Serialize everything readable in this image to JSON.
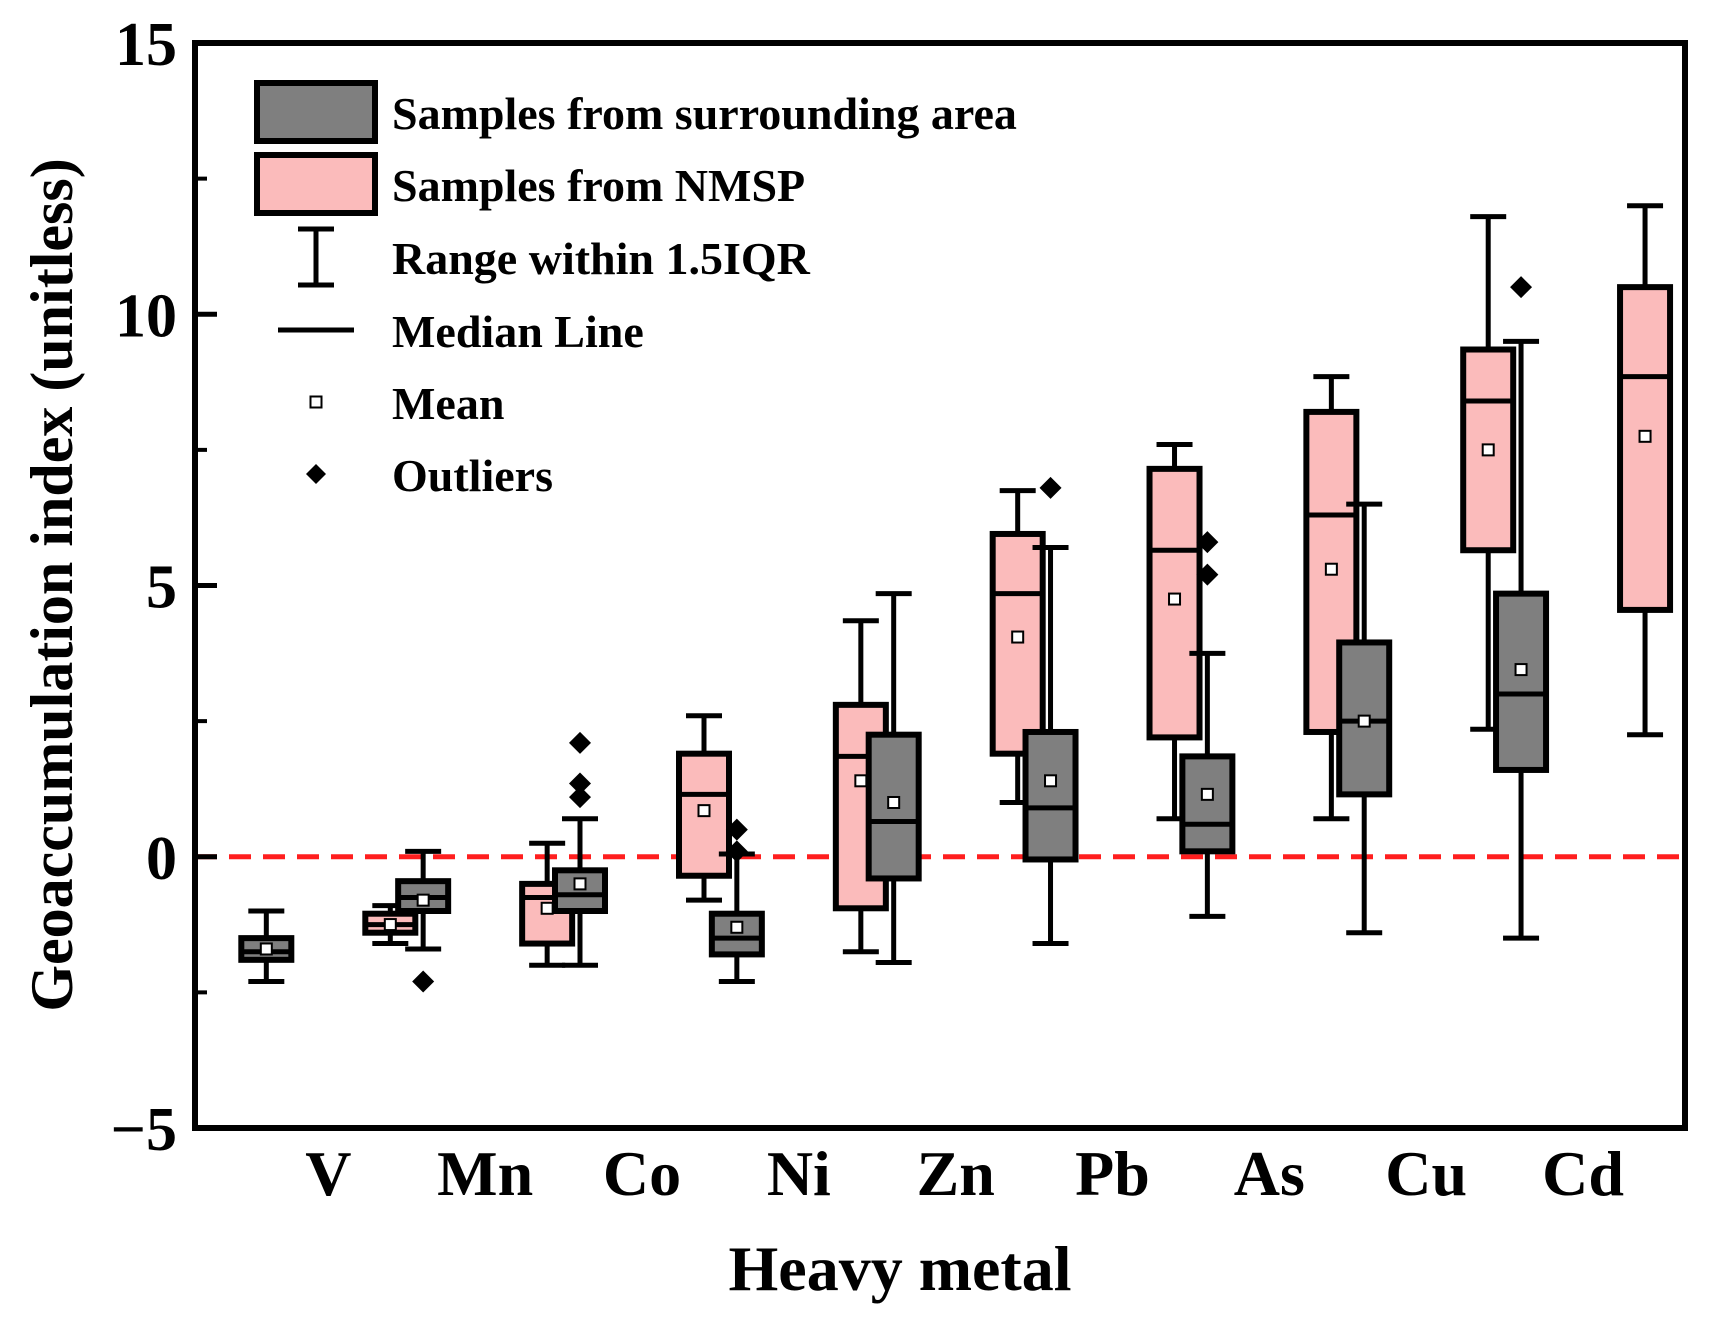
{
  "chart_data": {
    "type": "boxplot",
    "xlabel": "Heavy metal",
    "ylabel": "Geoaccumulation index (unitless)",
    "ylim": [
      -5,
      15
    ],
    "yticks": [
      "−5",
      "0",
      "5",
      "10",
      "15"
    ],
    "reference_line": 0,
    "colors": {
      "surrounding": "#7f7f7f",
      "nmsp": "#fbbbbb",
      "reference": "#ff1e1e",
      "axis": "#000000"
    },
    "categories": [
      "V",
      "Mn",
      "Co",
      "Ni",
      "Zn",
      "Pb",
      "As",
      "Cu",
      "Cd"
    ],
    "series": [
      {
        "name": "Samples from surrounding area",
        "key": "surrounding",
        "boxes": [
          {
            "whisker_low": -2.3,
            "q1": -1.9,
            "median": -1.75,
            "q3": -1.5,
            "whisker_high": -1.0,
            "mean": -1.7,
            "outliers": []
          },
          {
            "whisker_low": -1.7,
            "q1": -1.0,
            "median": -0.75,
            "q3": -0.45,
            "whisker_high": 0.1,
            "mean": -0.8,
            "outliers": [
              -2.3
            ]
          },
          {
            "whisker_low": -2.0,
            "q1": -1.0,
            "median": -0.7,
            "q3": -0.25,
            "whisker_high": 0.7,
            "mean": -0.5,
            "outliers": [
              1.1,
              1.35,
              2.1
            ]
          },
          {
            "whisker_low": -2.3,
            "q1": -1.8,
            "median": -1.5,
            "q3": -1.05,
            "whisker_high": 0.05,
            "mean": -1.3,
            "outliers": [
              0.1,
              0.5
            ]
          },
          {
            "whisker_low": -1.95,
            "q1": -0.4,
            "median": 0.65,
            "q3": 2.25,
            "whisker_high": 4.85,
            "mean": 1.0,
            "outliers": []
          },
          {
            "whisker_low": -1.6,
            "q1": -0.05,
            "median": 0.9,
            "q3": 2.3,
            "whisker_high": 5.7,
            "mean": 1.4,
            "outliers": [
              6.8
            ]
          },
          {
            "whisker_low": -1.1,
            "q1": 0.1,
            "median": 0.6,
            "q3": 1.85,
            "whisker_high": 3.75,
            "mean": 1.15,
            "outliers": [
              5.2,
              5.8
            ]
          },
          {
            "whisker_low": -1.4,
            "q1": 1.15,
            "median": 2.5,
            "q3": 3.95,
            "whisker_high": 6.5,
            "mean": 2.5,
            "outliers": []
          },
          {
            "whisker_low": -1.5,
            "q1": 1.6,
            "median": 3.0,
            "q3": 4.85,
            "whisker_high": 9.5,
            "mean": 3.45,
            "outliers": [
              10.5
            ]
          }
        ]
      },
      {
        "name": "Samples from NMSP",
        "key": "nmsp",
        "boxes": [
          {
            "whisker_low": -1.6,
            "q1": -1.4,
            "median": -1.25,
            "q3": -1.05,
            "whisker_high": -0.9,
            "mean": -1.25,
            "outliers": []
          },
          {
            "whisker_low": -2.0,
            "q1": -1.6,
            "median": -0.75,
            "q3": -0.5,
            "whisker_high": 0.25,
            "mean": -0.95,
            "outliers": []
          },
          {
            "whisker_low": -0.8,
            "q1": -0.35,
            "median": 1.15,
            "q3": 1.9,
            "whisker_high": 2.6,
            "mean": 0.85,
            "outliers": []
          },
          {
            "whisker_low": -1.75,
            "q1": -0.95,
            "median": 1.85,
            "q3": 2.8,
            "whisker_high": 4.35,
            "mean": 1.4,
            "outliers": []
          },
          {
            "whisker_low": 1.0,
            "q1": 1.9,
            "median": 4.85,
            "q3": 5.95,
            "whisker_high": 6.75,
            "mean": 4.05,
            "outliers": []
          },
          {
            "whisker_low": 0.7,
            "q1": 2.2,
            "median": 5.65,
            "q3": 7.15,
            "whisker_high": 7.6,
            "mean": 4.75,
            "outliers": []
          },
          {
            "whisker_low": 0.7,
            "q1": 2.3,
            "median": 6.3,
            "q3": 8.2,
            "whisker_high": 8.85,
            "mean": 5.3,
            "outliers": []
          },
          {
            "whisker_low": 2.35,
            "q1": 5.65,
            "median": 8.4,
            "q3": 9.35,
            "whisker_high": 11.8,
            "mean": 7.5,
            "outliers": []
          },
          {
            "whisker_low": 2.25,
            "q1": 4.55,
            "median": 8.85,
            "q3": 10.5,
            "whisker_high": 12.0,
            "mean": 7.75,
            "outliers": []
          }
        ]
      }
    ],
    "legend": {
      "position": "top-left",
      "entries": [
        {
          "label": "Samples from surrounding area",
          "symbol": "box-surrounding"
        },
        {
          "label": "Samples from NMSP",
          "symbol": "box-nmsp"
        },
        {
          "label": "Range within 1.5IQR",
          "symbol": "whisker"
        },
        {
          "label": "Median Line",
          "symbol": "line"
        },
        {
          "label": "Mean",
          "symbol": "open-square"
        },
        {
          "label": "Outliers",
          "symbol": "diamond"
        }
      ]
    }
  }
}
